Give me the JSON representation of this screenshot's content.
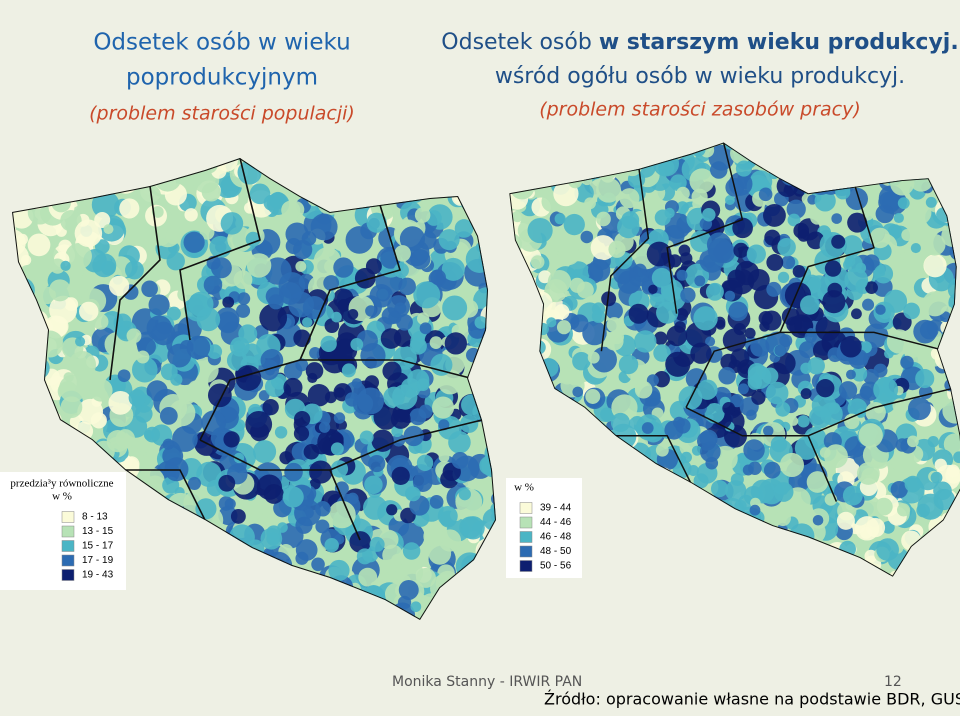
{
  "left_title": {
    "line1": "Odsetek osób w wieku",
    "line2": "poprodukcyjnym",
    "subtitle": "(problem starości populacji)"
  },
  "right_title": {
    "line1_normal": "Odsetek osób",
    "line1_bold": "w starszym wieku produkcyj.",
    "line2": "wśród ogółu osób w wieku produkcyj.",
    "subtitle": "(problem starości zasobów pracy)"
  },
  "legend_left": {
    "title": "przedzia³y równoliczne",
    "unit": "w %",
    "items": [
      {
        "label": "8 - 13",
        "color": "#fbfbd9"
      },
      {
        "label": "13 - 15",
        "color": "#b7e2b6"
      },
      {
        "label": "15 - 17",
        "color": "#4bb5c5"
      },
      {
        "label": "17 - 19",
        "color": "#2c6bb2"
      },
      {
        "label": "19 - 43",
        "color": "#0d1f70"
      }
    ]
  },
  "legend_right": {
    "unit": "w %",
    "items": [
      {
        "label": "39 - 44",
        "color": "#fbfbd9"
      },
      {
        "label": "44 - 46",
        "color": "#b7e2b6"
      },
      {
        "label": "46 - 48",
        "color": "#4bb5c5"
      },
      {
        "label": "48 - 50",
        "color": "#2c6bb2"
      },
      {
        "label": "50 - 56",
        "color": "#0d1f70"
      }
    ]
  },
  "footer": {
    "author": "Monika Stanny - IRWIR PAN",
    "page": "12",
    "source": "Źródło: opracowanie własne na podstawie BDR, GUS."
  }
}
